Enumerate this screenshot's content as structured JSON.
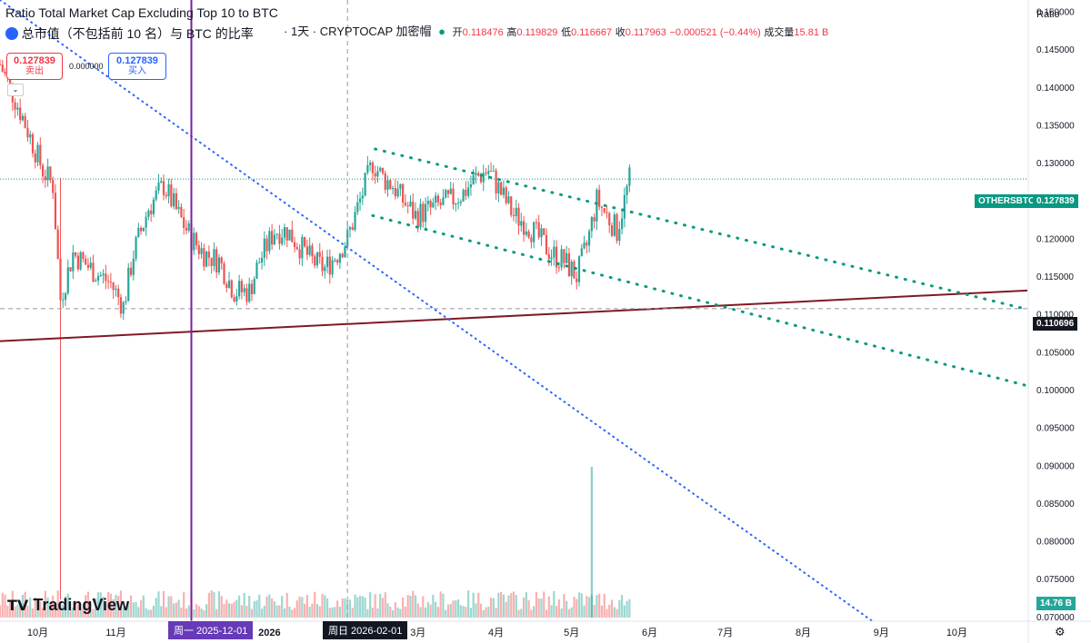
{
  "header": {
    "title": "Ratio Total Market Cap Excluding Top 10 to BTC",
    "subtitle": "总市值（不包括前 10 名）与 BTC 的比率",
    "interval_source": "· 1天 · CRYPTOCAP 加密帽",
    "open_label": "开",
    "open": "0.118476",
    "high_label": "高",
    "high": "0.119829",
    "low_label": "低",
    "low": "0.116667",
    "close_label": "收",
    "close": "0.117963",
    "change": "−0.000521 (−0.44%)",
    "volume_label": "成交量",
    "volume": "15.81 B"
  },
  "trade": {
    "sell_price": "0.127839",
    "sell_label": "卖出",
    "spread": "0.000000",
    "buy_price": "0.127839",
    "buy_label": "买入"
  },
  "price_axis": {
    "scale_button": "Ratio",
    "symbol_tag": "OTHERSBTC",
    "last_price": "0.127839",
    "crosshair_price": "0.110696",
    "volume_tag": "14.76 B",
    "ticks": [
      "0.150000",
      "0.145000",
      "0.140000",
      "0.135000",
      "0.130000",
      "0.125000",
      "0.120000",
      "0.115000",
      "0.110000",
      "0.105000",
      "0.100000",
      "0.095000",
      "0.090000",
      "0.085000",
      "0.080000",
      "0.075000",
      "0.070000"
    ]
  },
  "time_axis": {
    "ticks": [
      "10月",
      "11月",
      "2026",
      "3月",
      "4月",
      "5月",
      "6月",
      "7月",
      "8月",
      "9月",
      "10月"
    ],
    "marker_1": "周一 2025-12-01",
    "marker_2": "周日 2026-02-01"
  },
  "brand": {
    "logo": "TradingView"
  },
  "colors": {
    "up": "#26a69a",
    "down": "#ef5350",
    "channel": "#089981",
    "support": "#801922",
    "trend": "#2962ff",
    "vline": "#7b1fa2"
  },
  "chart_data": {
    "type": "candlestick",
    "title": "Ratio Total Market Cap Excluding Top 10 to BTC",
    "symbol": "OTHERSBTC",
    "interval": "1D",
    "ylim": [
      0.0695,
      0.1515
    ],
    "x_range": [
      "2025-09-16",
      "2026-10-29"
    ],
    "last_price": 0.127839,
    "close_series": [
      [
        "2025-09-16",
        0.143
      ],
      [
        "2025-09-25",
        0.136
      ],
      [
        "2025-10-03",
        0.129
      ],
      [
        "2025-10-07",
        0.127
      ],
      [
        "2025-10-10",
        0.112
      ],
      [
        "2025-10-15",
        0.118
      ],
      [
        "2025-10-22",
        0.116
      ],
      [
        "2025-10-30",
        0.114
      ],
      [
        "2025-11-04",
        0.111
      ],
      [
        "2025-11-08",
        0.118
      ],
      [
        "2025-11-14",
        0.124
      ],
      [
        "2025-11-20",
        0.127
      ],
      [
        "2025-11-26",
        0.123
      ],
      [
        "2025-12-01",
        0.12
      ],
      [
        "2025-12-06",
        0.118
      ],
      [
        "2025-12-12",
        0.117
      ],
      [
        "2025-12-18",
        0.113
      ],
      [
        "2025-12-24",
        0.113
      ],
      [
        "2025-12-28",
        0.117
      ],
      [
        "2026-01-03",
        0.121
      ],
      [
        "2026-01-08",
        0.121
      ],
      [
        "2026-01-13",
        0.119
      ],
      [
        "2026-01-18",
        0.117
      ],
      [
        "2026-01-23",
        0.116
      ],
      [
        "2026-01-28",
        0.118
      ],
      [
        "2026-02-01",
        0.12
      ],
      [
        "2026-02-06",
        0.125
      ],
      [
        "2026-02-11",
        0.13
      ],
      [
        "2026-02-15",
        0.128
      ],
      [
        "2026-02-19",
        0.127
      ],
      [
        "2026-02-23",
        0.125
      ],
      [
        "2026-02-28",
        0.123
      ],
      [
        "2026-03-07",
        0.124
      ],
      [
        "2026-03-14",
        0.125
      ],
      [
        "2026-03-19",
        0.126
      ],
      [
        "2026-03-24",
        0.128
      ],
      [
        "2026-03-29",
        0.129
      ],
      [
        "2026-04-03",
        0.126
      ],
      [
        "2026-04-08",
        0.123
      ],
      [
        "2026-04-13",
        0.122
      ],
      [
        "2026-04-18",
        0.12
      ],
      [
        "2026-04-23",
        0.118
      ],
      [
        "2026-04-28",
        0.117
      ],
      [
        "2026-05-03",
        0.115
      ],
      [
        "2026-05-07",
        0.119
      ],
      [
        "2026-05-11",
        0.125
      ],
      [
        "2026-05-15",
        0.123
      ],
      [
        "2026-05-19",
        0.121
      ],
      [
        "2026-05-22",
        0.125
      ],
      [
        "2026-05-24",
        0.1278
      ]
    ],
    "volume_spike": {
      "date": "2026-05-09",
      "value_B": 90
    },
    "drawings": {
      "support_line": {
        "from": [
          "2025-09-16",
          0.1064
        ],
        "to": [
          "2026-10-29",
          0.1131
        ]
      },
      "channel_upper": {
        "from": [
          "2026-02-12",
          0.1318
        ],
        "to": [
          "2026-10-29",
          0.1106
        ]
      },
      "channel_lower": {
        "from": [
          "2026-02-11",
          0.123
        ],
        "to": [
          "2026-10-29",
          0.1005
        ]
      },
      "trend_line": {
        "from": [
          "2025-09-16",
          0.1515
        ],
        "to": [
          "2026-08-28",
          0.0695
        ]
      },
      "horizontal_line": 0.110696
    }
  }
}
